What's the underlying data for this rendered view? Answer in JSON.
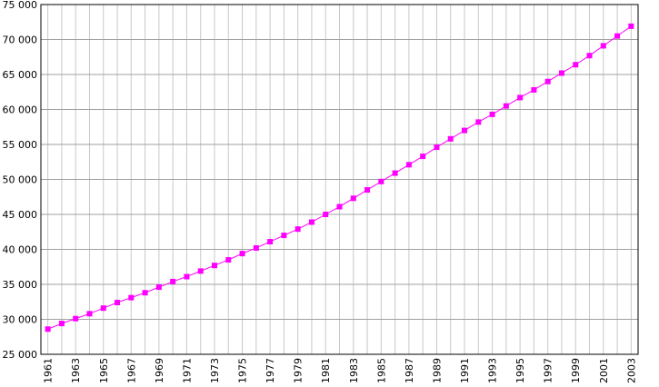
{
  "chart_data": {
    "type": "line",
    "x": [
      1961,
      1962,
      1963,
      1964,
      1965,
      1966,
      1967,
      1968,
      1969,
      1970,
      1971,
      1972,
      1973,
      1974,
      1975,
      1976,
      1977,
      1978,
      1979,
      1980,
      1981,
      1982,
      1983,
      1984,
      1985,
      1986,
      1987,
      1988,
      1989,
      1990,
      1991,
      1992,
      1993,
      1994,
      1995,
      1996,
      1997,
      1998,
      1999,
      2000,
      2001,
      2002,
      2003
    ],
    "series": [
      {
        "color": "#ff00ff",
        "values": [
          28600,
          29400,
          30100,
          30800,
          31600,
          32400,
          33100,
          33800,
          34600,
          35400,
          36100,
          36900,
          37700,
          38500,
          39400,
          40200,
          41100,
          42000,
          42900,
          43900,
          45000,
          46100,
          47300,
          48500,
          49700,
          50900,
          52100,
          53300,
          54600,
          55800,
          57000,
          58200,
          59300,
          60500,
          61700,
          62800,
          64000,
          65200,
          66400,
          67700,
          69100,
          70500,
          71900
        ]
      }
    ],
    "xlim": [
      1960.5,
      2003.5
    ],
    "xticks": [
      1961,
      1963,
      1965,
      1967,
      1969,
      1971,
      1973,
      1975,
      1977,
      1979,
      1981,
      1983,
      1985,
      1987,
      1989,
      1991,
      1993,
      1995,
      1997,
      1999,
      2001,
      2003
    ],
    "ylim": [
      25000,
      75000
    ],
    "yticks": [
      {
        "value": 25000,
        "label": "25 000"
      },
      {
        "value": 30000,
        "label": "30 000"
      },
      {
        "value": 35000,
        "label": "35 000"
      },
      {
        "value": 40000,
        "label": "40 000"
      },
      {
        "value": 45000,
        "label": "45 000"
      },
      {
        "value": 50000,
        "label": "50 000"
      },
      {
        "value": 55000,
        "label": "55 000"
      },
      {
        "value": 60000,
        "label": "60 000"
      },
      {
        "value": 65000,
        "label": "65 000"
      },
      {
        "value": 70000,
        "label": "70 000"
      },
      {
        "value": 75000,
        "label": "75 000"
      }
    ],
    "grid": true
  }
}
